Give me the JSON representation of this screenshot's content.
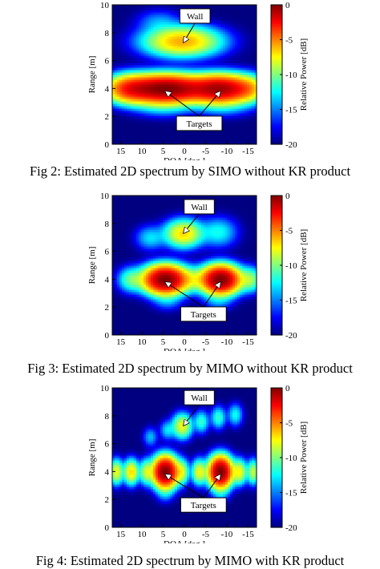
{
  "figures": [
    {
      "caption": "Fig 2: Estimated 2D spectrum by SIMO without KR product",
      "chart_data": {
        "type": "heatmap",
        "title": "",
        "xlabel": "DOA [deg.]",
        "ylabel": "Range [m]",
        "colorbar_label": "Relative Power [dB]",
        "x_ticks": [
          15,
          10,
          5,
          0,
          -5,
          -10,
          -15
        ],
        "y_ticks": [
          0,
          2,
          4,
          6,
          8,
          10
        ],
        "colorbar_ticks": [
          0,
          -5,
          -10,
          -15,
          -20
        ],
        "xlim": [
          17,
          -17
        ],
        "ylim": [
          0,
          10
        ],
        "clim": [
          -20,
          0
        ],
        "x_axis_reversed": true,
        "colormap": "jet",
        "background_db": -20,
        "blobs": [
          {
            "x": 4.5,
            "y": 4.0,
            "peak_db": 0,
            "sx": 5.5,
            "sy": 0.55
          },
          {
            "x": -8.5,
            "y": 4.0,
            "peak_db": -1,
            "sx": 4.0,
            "sy": 0.55
          },
          {
            "x": 13,
            "y": 4.0,
            "peak_db": -5,
            "sx": 3.0,
            "sy": 0.55
          },
          {
            "x": -15,
            "y": 4.0,
            "peak_db": -8,
            "sx": 2.5,
            "sy": 0.55
          },
          {
            "x": 0.5,
            "y": 7.4,
            "peak_db": -6,
            "sx": 5.0,
            "sy": 0.6
          },
          {
            "x": 5,
            "y": 2.8,
            "peak_db": -14,
            "sx": 4.0,
            "sy": 0.45
          },
          {
            "x": -9,
            "y": 2.8,
            "peak_db": -15,
            "sx": 4.0,
            "sy": 0.45
          },
          {
            "x": 6,
            "y": 8.8,
            "peak_db": -16,
            "sx": 3.0,
            "sy": 0.5
          }
        ],
        "annotations": [
          {
            "text": "Wall",
            "label_x": -2.5,
            "label_y": 9.2,
            "arrows": [
              {
                "x": 0.2,
                "y": 7.3
              }
            ]
          },
          {
            "text": "Targets",
            "label_x": -3.5,
            "label_y": 1.5,
            "arrows": [
              {
                "x": 4.5,
                "y": 3.8
              },
              {
                "x": -8.5,
                "y": 3.8
              }
            ]
          }
        ]
      }
    },
    {
      "caption": "Fig 3: Estimated 2D spectrum by MIMO without KR product",
      "chart_data": {
        "type": "heatmap",
        "title": "",
        "xlabel": "DOA [deg.]",
        "ylabel": "Range [m]",
        "colorbar_label": "Relative Power [dB]",
        "x_ticks": [
          15,
          10,
          5,
          0,
          -5,
          -10,
          -15
        ],
        "y_ticks": [
          0,
          2,
          4,
          6,
          8,
          10
        ],
        "colorbar_ticks": [
          0,
          -5,
          -10,
          -15,
          -20
        ],
        "xlim": [
          17,
          -17
        ],
        "ylim": [
          0,
          10
        ],
        "clim": [
          -20,
          0
        ],
        "x_axis_reversed": true,
        "colormap": "jet",
        "background_db": -20,
        "blobs": [
          {
            "x": 4.5,
            "y": 4.0,
            "peak_db": 0,
            "sx": 2.8,
            "sy": 0.55
          },
          {
            "x": -8.5,
            "y": 4.0,
            "peak_db": 0,
            "sx": 2.5,
            "sy": 0.55
          },
          {
            "x": 12.5,
            "y": 4.0,
            "peak_db": -11,
            "sx": 1.8,
            "sy": 0.5
          },
          {
            "x": -15.5,
            "y": 4.0,
            "peak_db": -10,
            "sx": 1.6,
            "sy": 0.5
          },
          {
            "x": -2,
            "y": 4.0,
            "peak_db": -11,
            "sx": 1.8,
            "sy": 0.5
          },
          {
            "x": 0.2,
            "y": 7.3,
            "peak_db": -7,
            "sx": 2.5,
            "sy": 0.55
          },
          {
            "x": 8,
            "y": 7.0,
            "peak_db": -14,
            "sx": 2.0,
            "sy": 0.5
          },
          {
            "x": -8,
            "y": 7.4,
            "peak_db": -13,
            "sx": 2.5,
            "sy": 0.6
          },
          {
            "x": 4,
            "y": 2.5,
            "peak_db": -16,
            "sx": 2.0,
            "sy": 0.4
          },
          {
            "x": -8,
            "y": 2.5,
            "peak_db": -16,
            "sx": 2.0,
            "sy": 0.4
          }
        ],
        "annotations": [
          {
            "text": "Wall",
            "label_x": -3.5,
            "label_y": 9.2,
            "arrows": [
              {
                "x": 0.2,
                "y": 7.3
              }
            ]
          },
          {
            "text": "Targets",
            "label_x": -4.5,
            "label_y": 1.5,
            "arrows": [
              {
                "x": 4.5,
                "y": 3.8
              },
              {
                "x": -8.5,
                "y": 3.8
              }
            ]
          }
        ]
      }
    },
    {
      "caption": "Fig 4: Estimated 2D spectrum by MIMO with KR product",
      "chart_data": {
        "type": "heatmap",
        "title": "",
        "xlabel": "DOA [deg.]",
        "ylabel": "Range [m]",
        "colorbar_label": "Relative Power [dB]",
        "x_ticks": [
          15,
          10,
          5,
          0,
          -5,
          -10,
          -15
        ],
        "y_ticks": [
          0,
          2,
          4,
          6,
          8,
          10
        ],
        "colorbar_ticks": [
          0,
          -5,
          -10,
          -15,
          -20
        ],
        "xlim": [
          17,
          -17
        ],
        "ylim": [
          0,
          10
        ],
        "clim": [
          -20,
          0
        ],
        "x_axis_reversed": true,
        "colormap": "jet",
        "background_db": -20,
        "blobs": [
          {
            "x": 4.5,
            "y": 4.0,
            "peak_db": 0,
            "sx": 1.6,
            "sy": 0.6
          },
          {
            "x": -8.5,
            "y": 4.0,
            "peak_db": 0,
            "sx": 1.5,
            "sy": 0.6
          },
          {
            "x": 16,
            "y": 4.0,
            "peak_db": -8,
            "sx": 0.9,
            "sy": 0.5
          },
          {
            "x": 12.5,
            "y": 4.0,
            "peak_db": -7,
            "sx": 1.0,
            "sy": 0.5
          },
          {
            "x": 9,
            "y": 4.0,
            "peak_db": -9,
            "sx": 0.9,
            "sy": 0.5
          },
          {
            "x": 0.5,
            "y": 4.0,
            "peak_db": -9,
            "sx": 0.9,
            "sy": 0.5
          },
          {
            "x": -3.5,
            "y": 4.0,
            "peak_db": -8,
            "sx": 1.0,
            "sy": 0.5
          },
          {
            "x": -13,
            "y": 4.0,
            "peak_db": -8,
            "sx": 1.0,
            "sy": 0.5
          },
          {
            "x": -16.2,
            "y": 4.0,
            "peak_db": -9,
            "sx": 0.8,
            "sy": 0.5
          },
          {
            "x": 0.5,
            "y": 7.3,
            "peak_db": -8,
            "sx": 1.3,
            "sy": 0.5
          },
          {
            "x": 8,
            "y": 6.5,
            "peak_db": -15,
            "sx": 1.0,
            "sy": 0.4
          },
          {
            "x": 4,
            "y": 7.0,
            "peak_db": -14,
            "sx": 1.0,
            "sy": 0.4
          },
          {
            "x": -4,
            "y": 7.6,
            "peak_db": -12,
            "sx": 1.0,
            "sy": 0.45
          },
          {
            "x": -8,
            "y": 7.9,
            "peak_db": -12,
            "sx": 1.0,
            "sy": 0.45
          },
          {
            "x": -12,
            "y": 8.1,
            "peak_db": -13,
            "sx": 1.0,
            "sy": 0.45
          },
          {
            "x": 4.5,
            "y": 2.5,
            "peak_db": -16,
            "sx": 1.2,
            "sy": 0.4
          },
          {
            "x": -8.5,
            "y": 2.5,
            "peak_db": -16,
            "sx": 1.2,
            "sy": 0.4
          }
        ],
        "annotations": [
          {
            "text": "Wall",
            "label_x": -3.5,
            "label_y": 9.3,
            "arrows": [
              {
                "x": 0.2,
                "y": 7.3
              }
            ]
          },
          {
            "text": "Targets",
            "label_x": -4.5,
            "label_y": 1.6,
            "arrows": [
              {
                "x": 4.5,
                "y": 3.8
              },
              {
                "x": -8.5,
                "y": 3.8
              }
            ]
          }
        ]
      }
    }
  ]
}
